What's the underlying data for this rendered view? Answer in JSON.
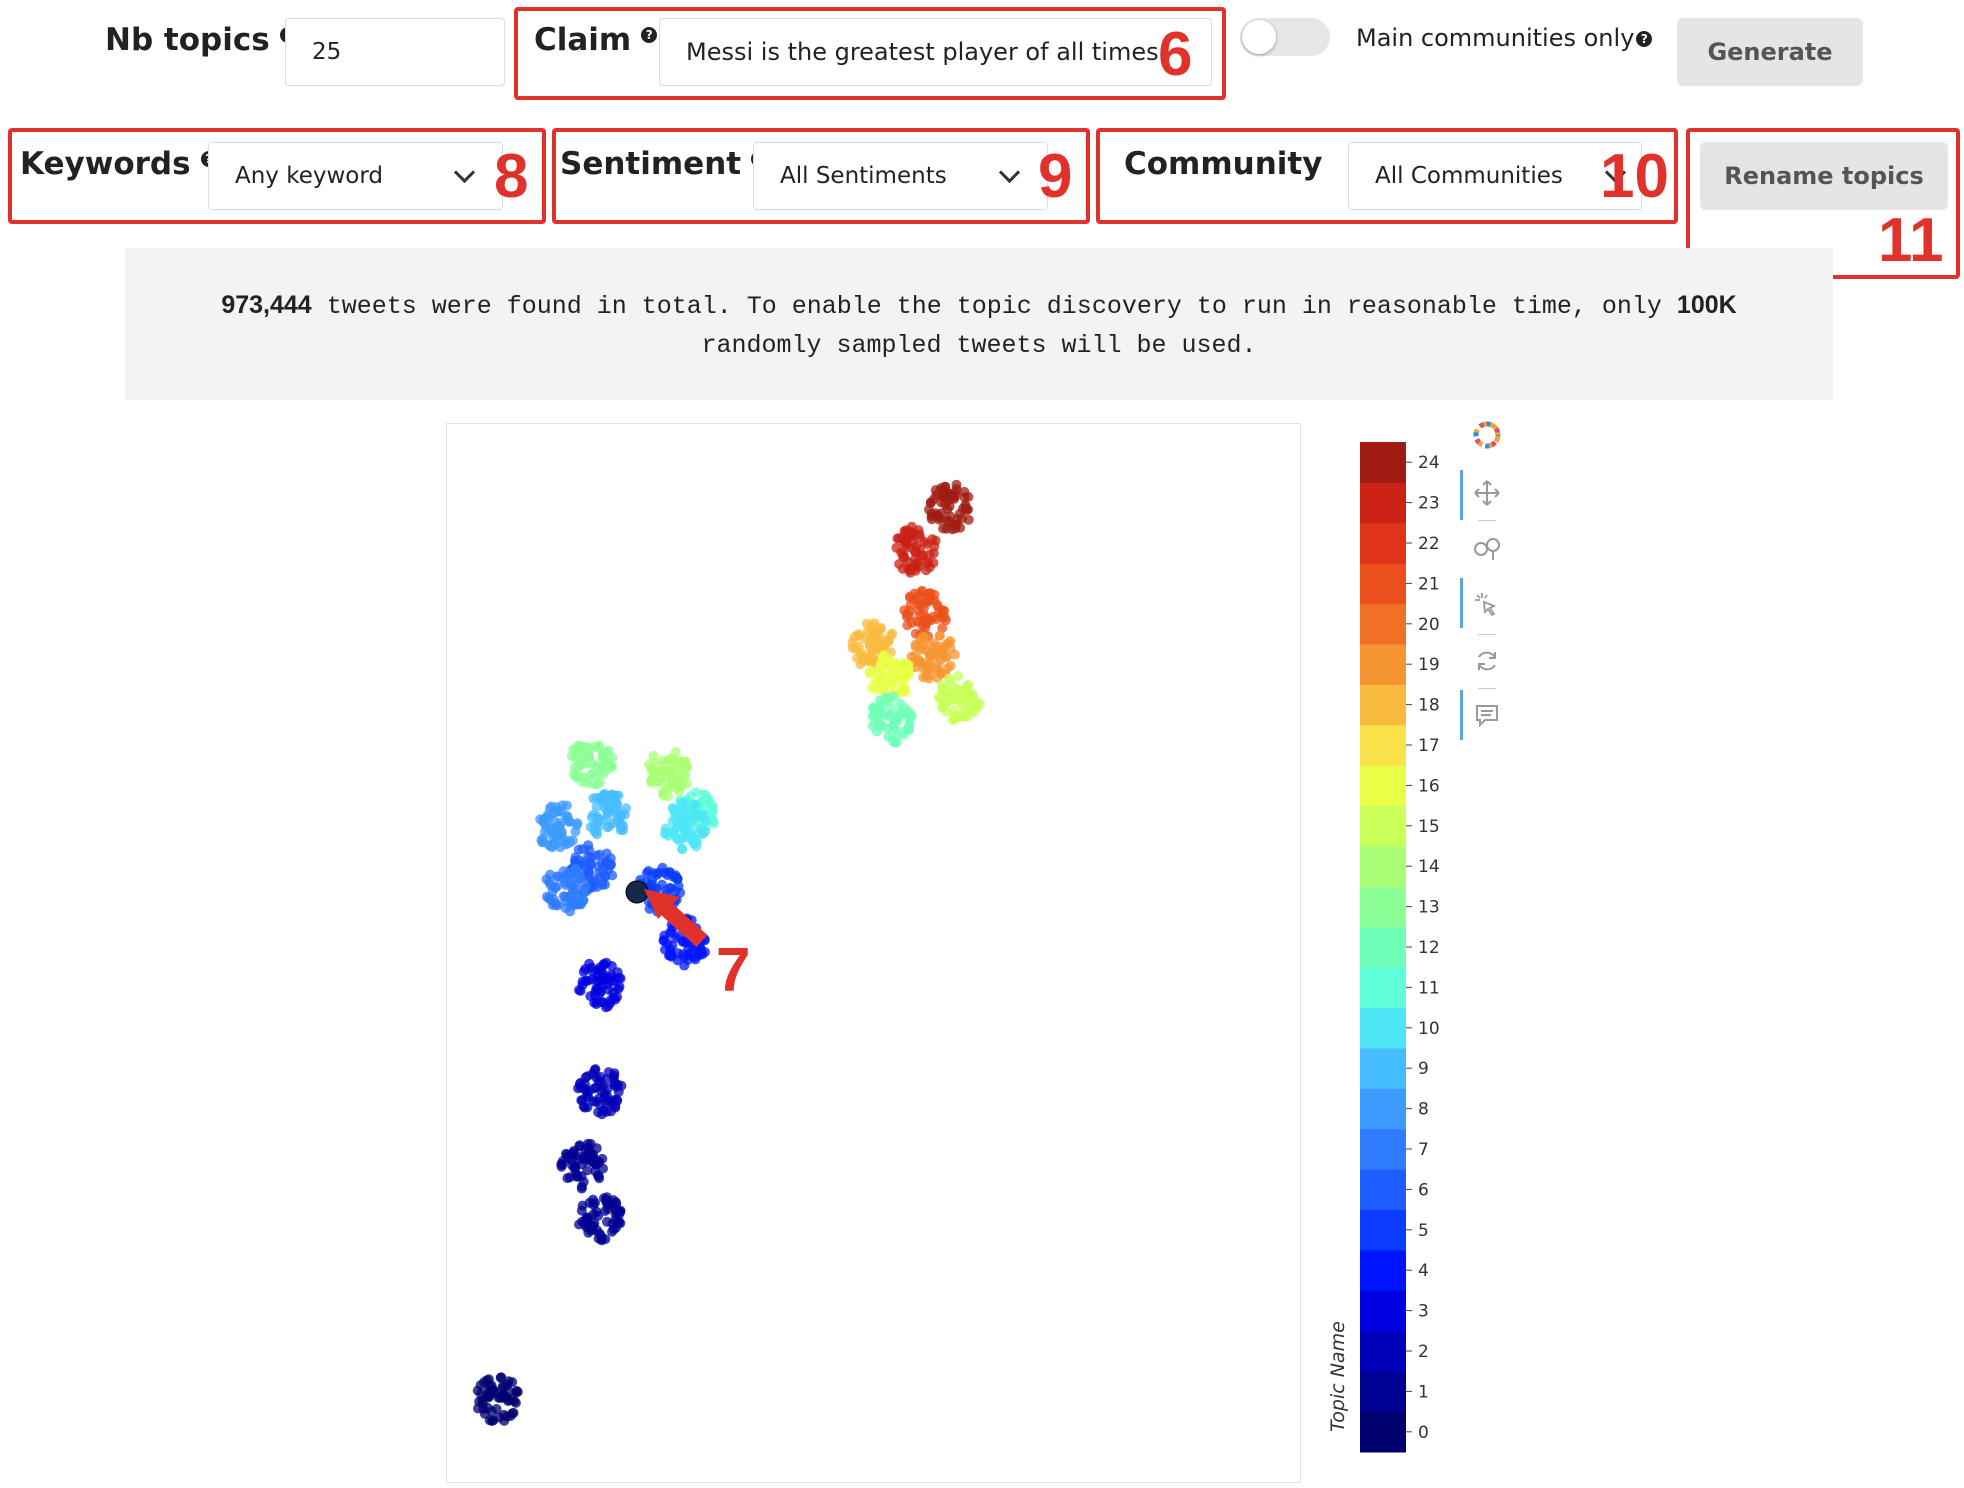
{
  "controls": {
    "nb_topics_label": "Nb topics",
    "nb_topics_value": "25",
    "claim_label": "Claim",
    "claim_value": "Messi is the greatest player of all times",
    "main_communities_label": "Main communities only",
    "generate_label": "Generate",
    "keywords_label": "Keywords",
    "keywords_value": "Any keyword",
    "sentiment_label": "Sentiment",
    "sentiment_value": "All Sentiments",
    "community_label": "Community",
    "community_value": "All Communities",
    "rename_label": "Rename topics"
  },
  "annotations": {
    "n6": "6",
    "n7": "7",
    "n8": "8",
    "n9": "9",
    "n10": "10",
    "n11": "11"
  },
  "info": {
    "count": "973,444",
    "text1": " tweets were found in total. To enable the topic discovery to run in reasonable time, only ",
    "sample": "100K",
    "text2": "randomly sampled tweets will be used."
  },
  "chart_data": {
    "type": "scatter",
    "colorbar": {
      "title": "Topic Name",
      "ticks": [
        "0",
        "1",
        "2",
        "3",
        "4",
        "5",
        "6",
        "7",
        "8",
        "9",
        "10",
        "11",
        "12",
        "13",
        "14",
        "15",
        "16",
        "17",
        "18",
        "19",
        "20",
        "21",
        "22",
        "23",
        "24"
      ],
      "colors": [
        "#00006e",
        "#000093",
        "#0000b8",
        "#0000e0",
        "#0014ff",
        "#0a3cff",
        "#1e5cff",
        "#2f7cff",
        "#3d9aff",
        "#45bcff",
        "#4ee6f5",
        "#5effda",
        "#70ffb8",
        "#8cff96",
        "#aaff76",
        "#c8ff58",
        "#e8ff46",
        "#f9e24a",
        "#f8bb3e",
        "#f59532",
        "#f07026",
        "#eb501c",
        "#e0341a",
        "#cb2216",
        "#a01c12"
      ]
    },
    "clusters": [
      {
        "topic": 24,
        "x": 0.59,
        "y": 0.92
      },
      {
        "topic": 23,
        "x": 0.55,
        "y": 0.88
      },
      {
        "topic": 21,
        "x": 0.56,
        "y": 0.82
      },
      {
        "topic": 18,
        "x": 0.5,
        "y": 0.79
      },
      {
        "topic": 19,
        "x": 0.57,
        "y": 0.78
      },
      {
        "topic": 16,
        "x": 0.52,
        "y": 0.76
      },
      {
        "topic": 15,
        "x": 0.6,
        "y": 0.74
      },
      {
        "topic": 12,
        "x": 0.52,
        "y": 0.72
      },
      {
        "topic": 13,
        "x": 0.17,
        "y": 0.68
      },
      {
        "topic": 14,
        "x": 0.26,
        "y": 0.67
      },
      {
        "topic": 11,
        "x": 0.29,
        "y": 0.63
      },
      {
        "topic": 9,
        "x": 0.19,
        "y": 0.63
      },
      {
        "topic": 8,
        "x": 0.13,
        "y": 0.62
      },
      {
        "topic": 10,
        "x": 0.28,
        "y": 0.62
      },
      {
        "topic": 6,
        "x": 0.17,
        "y": 0.58
      },
      {
        "topic": 5,
        "x": 0.25,
        "y": 0.56
      },
      {
        "topic": 7,
        "x": 0.14,
        "y": 0.56
      },
      {
        "topic": 4,
        "x": 0.28,
        "y": 0.51
      },
      {
        "topic": 3,
        "x": 0.18,
        "y": 0.47
      },
      {
        "topic": 2,
        "x": 0.18,
        "y": 0.37
      },
      {
        "topic": 1,
        "x": 0.16,
        "y": 0.3
      },
      {
        "topic": 1,
        "x": 0.18,
        "y": 0.25
      },
      {
        "topic": 0,
        "x": 0.06,
        "y": 0.08
      }
    ]
  }
}
